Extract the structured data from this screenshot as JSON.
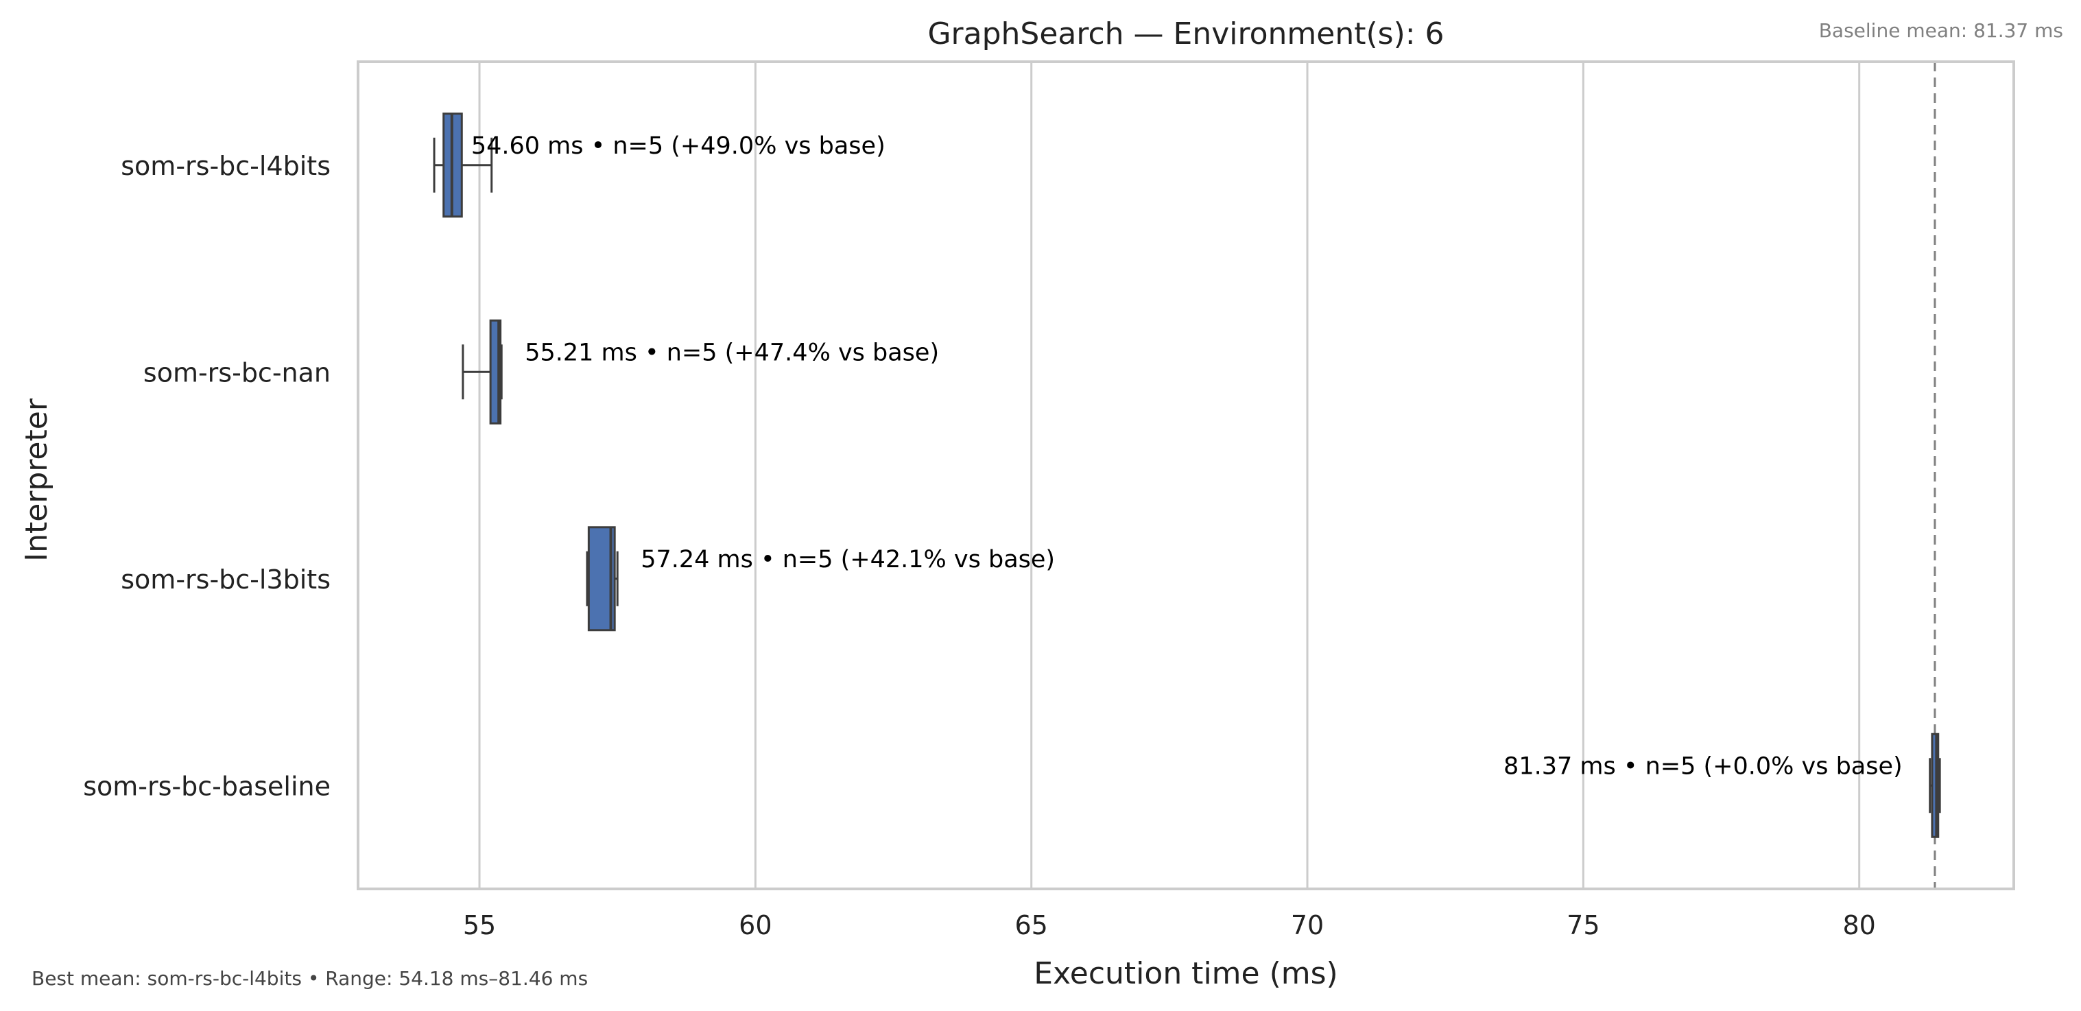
{
  "chart_data": {
    "type": "boxplot",
    "orientation": "horizontal",
    "title": "GraphSearch — Environment(s): 6",
    "xlabel": "Execution time (ms)",
    "ylabel": "Interpreter",
    "xlim": [
      52.8,
      82.8
    ],
    "xticks": [
      55,
      60,
      65,
      70,
      75,
      80
    ],
    "grid": true,
    "categories": [
      "som-rs-bc-l4bits",
      "som-rs-bc-nan",
      "som-rs-bc-l3bits",
      "som-rs-bc-baseline"
    ],
    "series": [
      {
        "category": "som-rs-bc-l4bits",
        "min": 54.18,
        "q1": 54.35,
        "median": 54.5,
        "q3": 54.68,
        "max": 55.22,
        "mean": 54.6,
        "n": 5,
        "annotation": "54.60 ms • n=5 (+49.0% vs base)"
      },
      {
        "category": "som-rs-bc-nan",
        "min": 54.7,
        "q1": 55.2,
        "median": 55.35,
        "q3": 55.38,
        "max": 55.4,
        "mean": 55.21,
        "n": 5,
        "annotation": "55.21 ms • n=5 (+47.4% vs base)"
      },
      {
        "category": "som-rs-bc-l3bits",
        "min": 56.95,
        "q1": 56.98,
        "median": 57.38,
        "q3": 57.45,
        "max": 57.5,
        "mean": 57.24,
        "n": 5,
        "annotation": "57.24 ms • n=5 (+42.1% vs base)"
      },
      {
        "category": "som-rs-bc-baseline",
        "min": 81.28,
        "q1": 81.32,
        "median": 81.4,
        "q3": 81.43,
        "max": 81.46,
        "mean": 81.37,
        "n": 5,
        "annotation": "81.37 ms • n=5 (+0.0% vs base)"
      }
    ],
    "baseline_mean": 81.37,
    "baseline_label": "Baseline mean: 81.37 ms",
    "footer": "Best mean: som-rs-bc-l4bits • Range: 54.18 ms–81.46 ms",
    "colors": {
      "box": "#4c72b0",
      "box_edge": "#3d3d3d",
      "grid": "#cccccc",
      "frame": "#cccccc",
      "baseline_line": "#808080"
    }
  }
}
